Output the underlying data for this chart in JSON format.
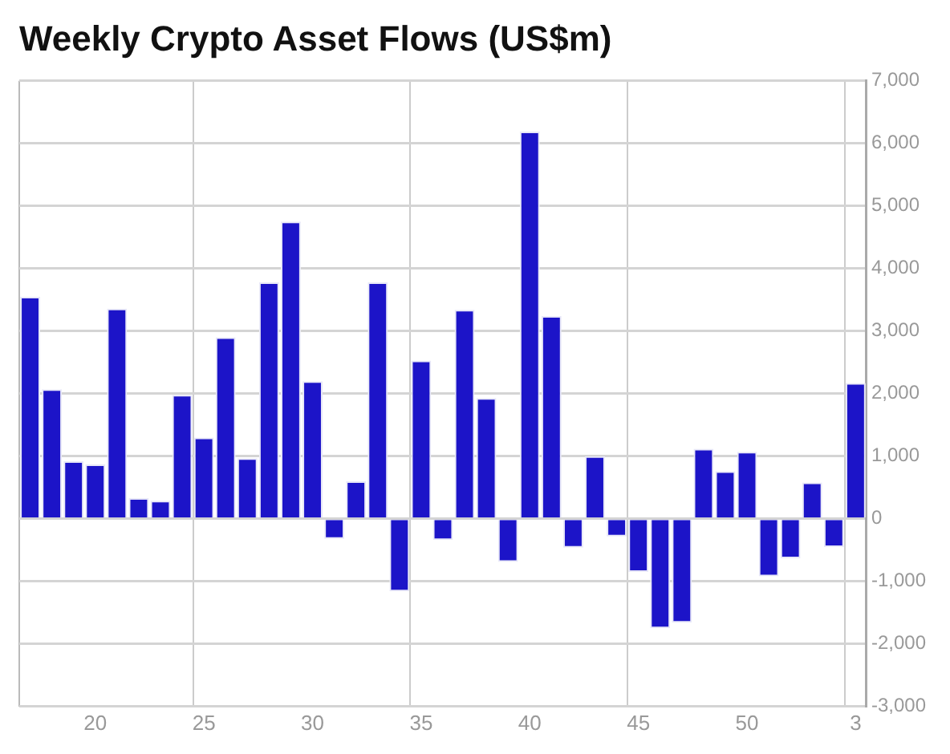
{
  "chart_data": {
    "type": "bar",
    "title": "Weekly Crypto Asset Flows (US$m)",
    "categories": [
      null,
      null,
      null,
      "20",
      null,
      null,
      null,
      null,
      "25",
      null,
      null,
      null,
      null,
      "30",
      null,
      null,
      null,
      null,
      "35",
      null,
      null,
      null,
      null,
      "40",
      null,
      null,
      null,
      null,
      "45",
      null,
      null,
      null,
      null,
      "50",
      null,
      null,
      null,
      null,
      "3"
    ],
    "series": [
      {
        "color": "#1c14c8",
        "values": [
          3550,
          2070,
          920,
          870,
          3360,
          330,
          290,
          1980,
          1300,
          2900,
          970,
          3780,
          4750,
          2200,
          -320,
          600,
          3780,
          -1160,
          2530,
          -340,
          3340,
          1930,
          -690,
          6190,
          3240,
          -460,
          1000,
          -280,
          -850,
          -1750,
          -1660,
          1120,
          760,
          1070,
          -920,
          -630,
          580,
          -450,
          2170
        ]
      }
    ],
    "ylim": [
      -3000,
      7000
    ],
    "yticks": [
      {
        "value": -3000,
        "label": "-3,000"
      },
      {
        "value": -2000,
        "label": "-2,000"
      },
      {
        "value": -1000,
        "label": "-1,000"
      },
      0,
      {
        "value": 1000,
        "label": "1,000"
      },
      {
        "value": 2000,
        "label": "2,000"
      },
      {
        "value": 3000,
        "label": "3,000"
      },
      {
        "value": 4000,
        "label": "4,000"
      },
      {
        "value": 5000,
        "label": "5,000"
      },
      {
        "value": 6000,
        "label": "6,000"
      },
      {
        "value": 7000,
        "label": "7,000"
      }
    ],
    "grid": true,
    "legend": false
  }
}
